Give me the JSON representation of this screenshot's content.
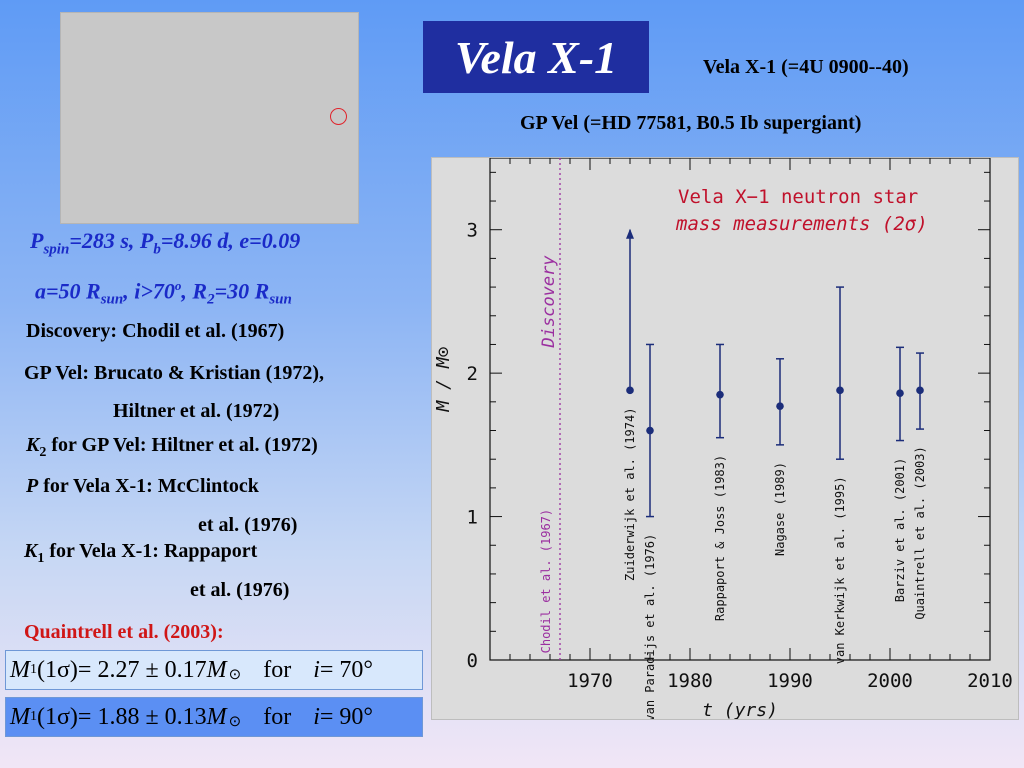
{
  "slide": {
    "title": "Vela X-1",
    "subtitle_line1": "Vela X-1 (=4U 0900--40)",
    "subtitle_line2": "GP Vel (=HD 77581, B0.5 Ib supergiant)"
  },
  "params": {
    "p_spin_symbol": "P",
    "p_spin_sub": "spin",
    "p_spin_value": "=283 s, ",
    "p_b_symbol": "P",
    "p_b_sub": "b",
    "p_b_value": "=8.96 d, e=0.09",
    "a_value": "a=50 R",
    "a_sub": "sun",
    "incl_value": ",  i>70",
    "incl_sup": "o",
    "incl_tail": ",  R",
    "r2_sub": "2",
    "r2_value": "=30 R",
    "r2_unit_sub": "sun"
  },
  "references": {
    "discovery": "Discovery: Chodil et al. (1967)",
    "gpvel_line1": "GP Vel: Brucato & Kristian (1972),",
    "gpvel_line2": "Hiltner et al. (1972)",
    "k2_symbol": "K",
    "k2_sub": "2",
    "k2_text": " for GP Vel: Hiltner et al. (1972)",
    "p_symbol": "P",
    "p_text": " for Vela X-1: McClintock",
    "p_line2": "et al. (1976)",
    "k1_symbol": "K",
    "k1_sub": "1",
    "k1_text": " for Vela X-1: Rappaport",
    "k1_line2": "et al. (1976)"
  },
  "quaintrell": {
    "heading": "Quaintrell et al. (2003):",
    "eq1": {
      "lhs_symbol": "M",
      "lhs_sub": "1",
      "lhs_arg": "(1σ)",
      "rhs": " = 2.27 ± 0.17 ",
      "mass_symbol": "M",
      "sun_glyph": "⊙",
      "for_word": "for",
      "cond_symbol": "i",
      "cond_value": " = 70°"
    },
    "eq2": {
      "lhs_symbol": "M",
      "lhs_sub": "1",
      "lhs_arg": "(1σ)",
      "rhs": " = 1.88 ± 0.13 ",
      "mass_symbol": "M",
      "sun_glyph": "⊙",
      "for_word": "for",
      "cond_symbol": "i",
      "cond_value": " = 90°"
    }
  },
  "colors": {
    "chart_navy": "#1c2d7a",
    "chart_magenta": "#9b2fa0",
    "chart_red": "#c0112b",
    "param_blue": "#1a2ac8",
    "accent_red": "#d01616"
  },
  "chart_data": {
    "type": "scatter",
    "title_line1": "Vela X−1 neutron star",
    "title_line2": "mass measurements (2σ)",
    "xlabel": "t  (yrs)",
    "ylabel": "M / M⊙",
    "xlim": [
      1960,
      2010
    ],
    "ylim": [
      0,
      3.5
    ],
    "xticks": [
      1970,
      1980,
      1990,
      2000,
      2010
    ],
    "yticks": [
      0,
      1,
      2,
      3
    ],
    "grid": false,
    "discovery": {
      "x": 1967,
      "label": "Discovery",
      "reference": "Chodil et al. (1967)"
    },
    "points": [
      {
        "label": "Zuiderwijk et al. (1974)",
        "x": 1974,
        "y": 1.88,
        "low": 1.88,
        "high": 3.0,
        "lower_limit": true
      },
      {
        "label": "van Paradijs et al. (1976)",
        "x": 1976,
        "y": 1.6,
        "low": 1.0,
        "high": 2.2
      },
      {
        "label": "Rappaport & Joss (1983)",
        "x": 1983,
        "y": 1.85,
        "low": 1.55,
        "high": 2.2
      },
      {
        "label": "Nagase (1989)",
        "x": 1989,
        "y": 1.77,
        "low": 1.5,
        "high": 2.1
      },
      {
        "label": "van Kerkwijk et al. (1995)",
        "x": 1995,
        "y": 1.88,
        "low": 1.4,
        "high": 2.6
      },
      {
        "label": "Barziv et al. (2001)",
        "x": 2001,
        "y": 1.86,
        "low": 1.53,
        "high": 2.18
      },
      {
        "label": "Quaintrell et al. (2003)",
        "x": 2003,
        "y": 1.88,
        "low": 1.61,
        "high": 2.14
      }
    ]
  }
}
